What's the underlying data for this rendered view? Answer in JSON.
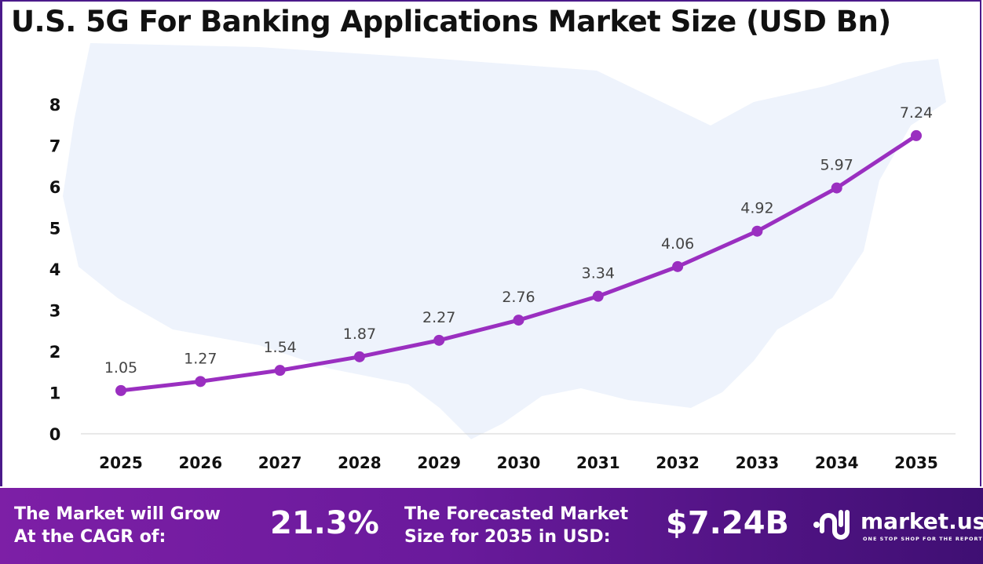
{
  "chart_data": {
    "type": "line",
    "title": "U.S. 5G For Banking Applications Market Size (USD Bn)",
    "categories": [
      "2025",
      "2026",
      "2027",
      "2028",
      "2029",
      "2030",
      "2031",
      "2032",
      "2033",
      "2034",
      "2035"
    ],
    "values": [
      1.05,
      1.27,
      1.54,
      1.87,
      2.27,
      2.76,
      3.34,
      4.06,
      4.92,
      5.97,
      7.24
    ],
    "data_labels": [
      "1.05",
      "1.27",
      "1.54",
      "1.87",
      "2.27",
      "2.76",
      "3.34",
      "4.06",
      "4.92",
      "5.97",
      "7.24"
    ],
    "ylim": [
      0,
      8
    ],
    "yticks": [
      "0",
      "1",
      "2",
      "3",
      "4",
      "5",
      "6",
      "7",
      "8"
    ],
    "grid": false,
    "line_color": "#9a2fc0",
    "background": "U.S. map silhouette"
  },
  "footer": {
    "cagr_label": [
      "The Market will Grow",
      "At the CAGR of:"
    ],
    "cagr_value": "21.3%",
    "forecast_label": [
      "The Forecasted Market",
      "Size for 2035 in USD:"
    ],
    "forecast_value": "$7.24B",
    "brand": "market.us",
    "tagline": "ONE STOP SHOP FOR THE REPORTS"
  }
}
